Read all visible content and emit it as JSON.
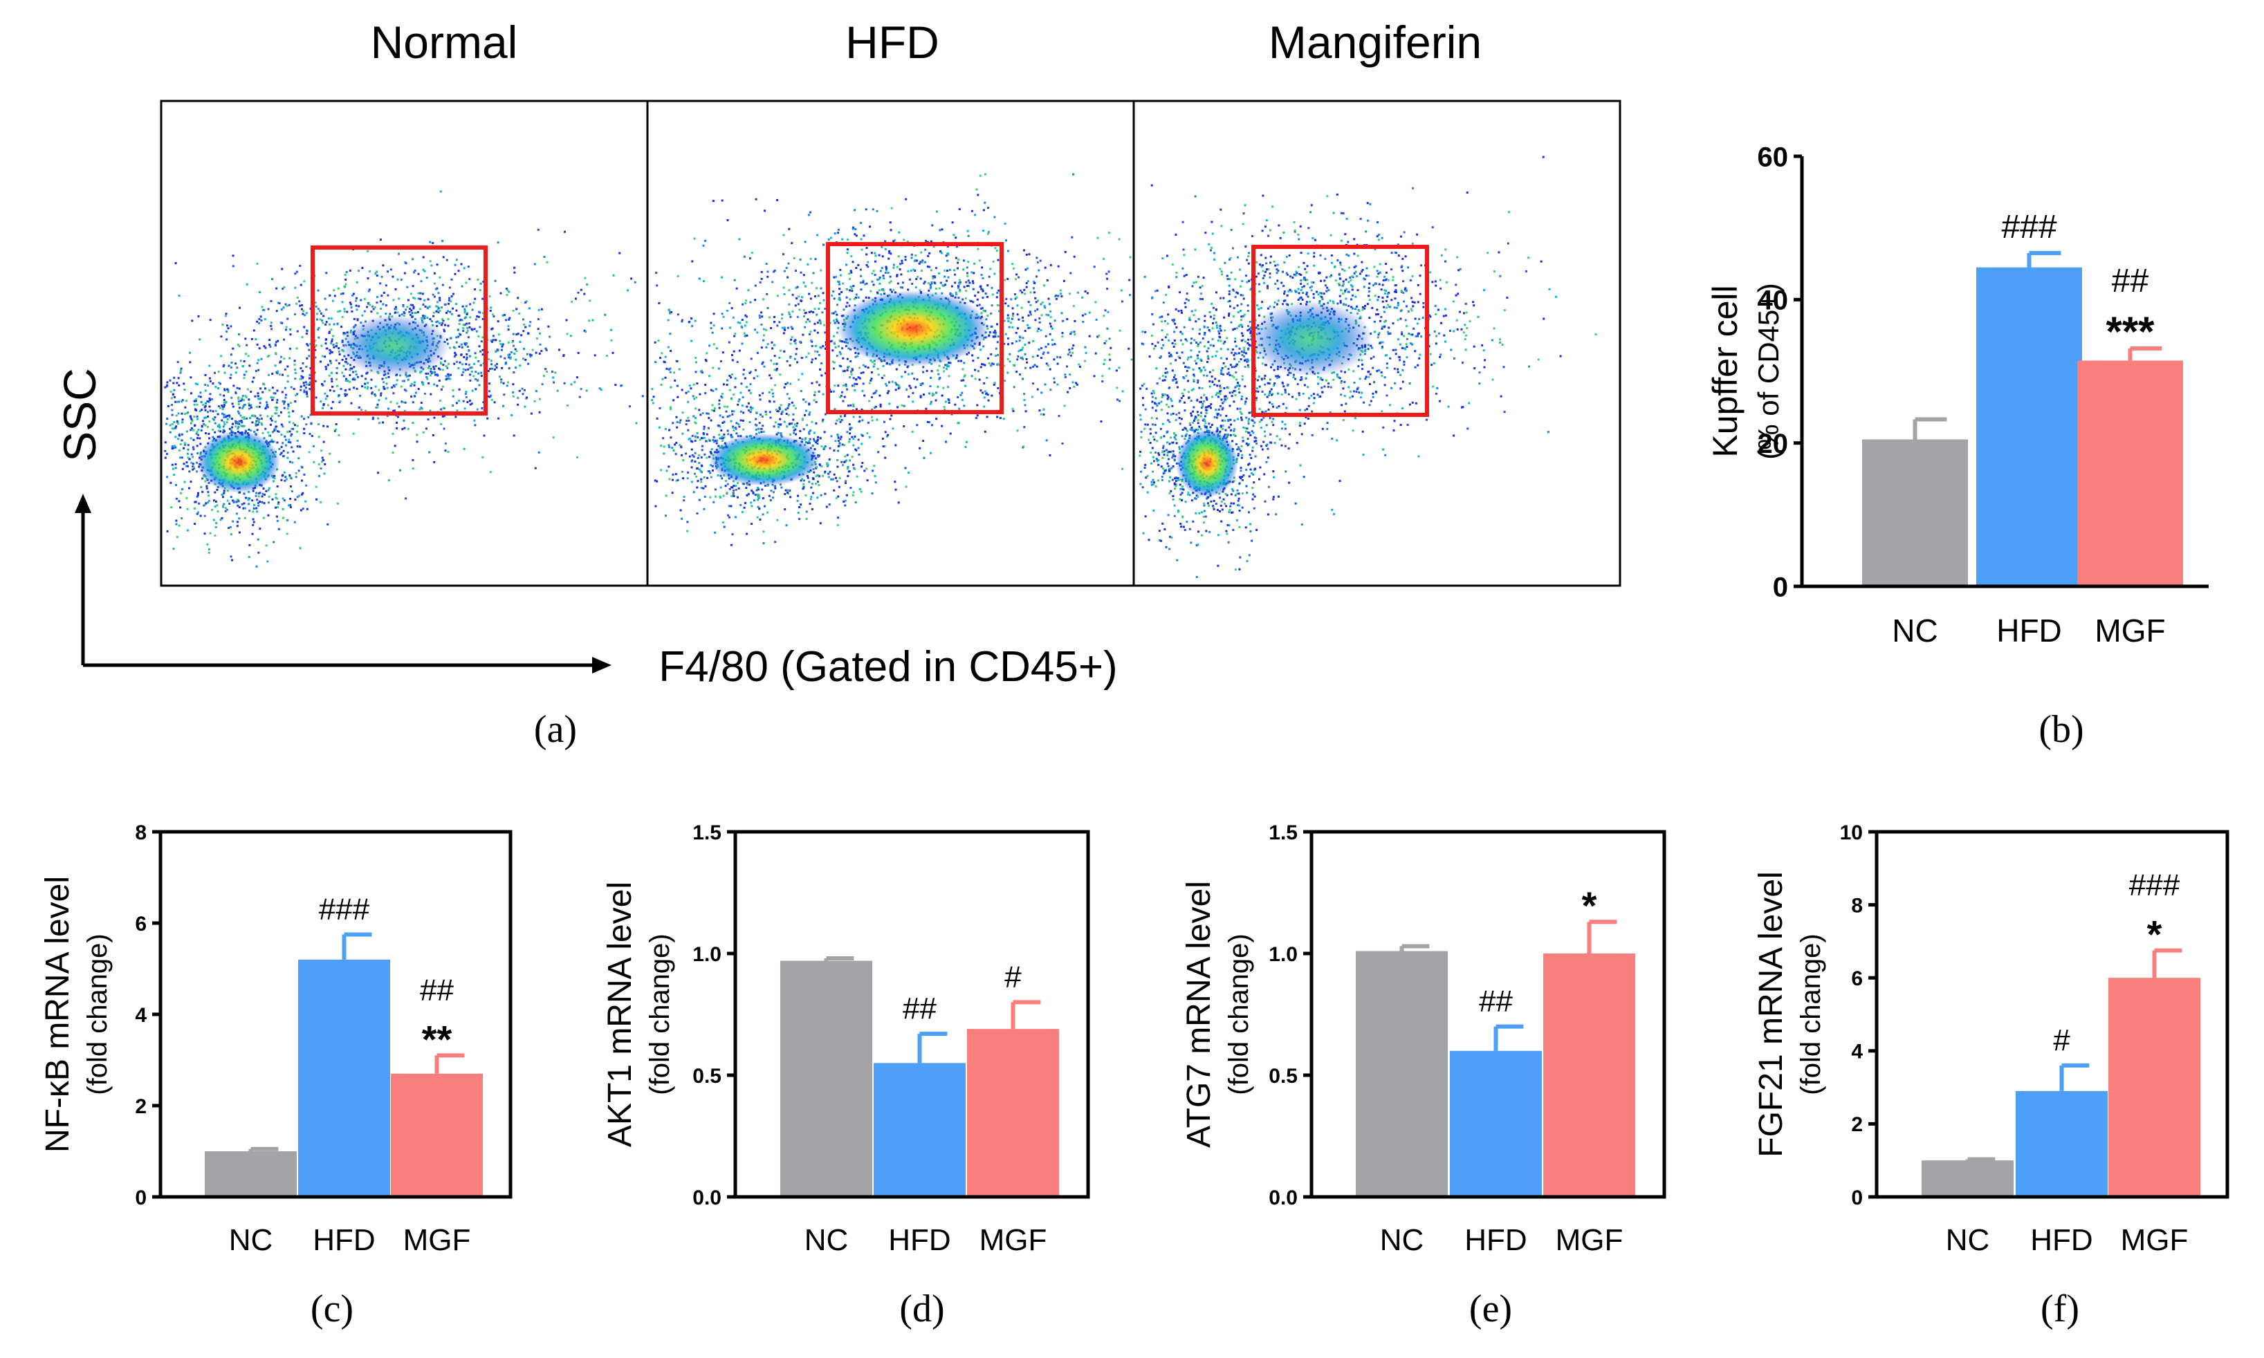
{
  "flow_panel": {
    "groups": [
      "Normal",
      "HFD",
      "Mangiferin"
    ],
    "y_label": "SSC",
    "x_label": "F4/80 (Gated in CD45+)",
    "caption": "(a)"
  },
  "colors": {
    "NC": "#a3a3a8",
    "HFD": "#4d9ff7",
    "MGF": "#f97f7e",
    "gate": "#ee1b1b",
    "axis": "#000000"
  },
  "chart_data": [
    {
      "id": "b",
      "type": "bar",
      "caption": "(b)",
      "ylabel_line1": "Kupffer cell",
      "ylabel_line2": "(% of CD45+)",
      "categories": [
        "NC",
        "HFD",
        "MGF"
      ],
      "values": [
        20.5,
        44.5,
        31.5
      ],
      "errors": [
        2.8,
        2.0,
        1.7
      ],
      "ylim": [
        0,
        60
      ],
      "yticks": [
        0,
        20,
        40,
        60
      ],
      "tick_labels": [
        "0",
        "20",
        "40",
        "60"
      ],
      "annotations": [
        [],
        [
          "###"
        ],
        [
          "##",
          "***"
        ]
      ]
    },
    {
      "id": "c",
      "type": "bar",
      "caption": "(c)",
      "ylabel_line1": "NF-κB mRNA level",
      "ylabel_line2": "(fold change)",
      "categories": [
        "NC",
        "HFD",
        "MGF"
      ],
      "values": [
        1.0,
        5.2,
        2.7
      ],
      "errors": [
        0.05,
        0.55,
        0.4
      ],
      "ylim": [
        0,
        8
      ],
      "yticks": [
        0,
        2,
        4,
        6,
        8
      ],
      "tick_labels": [
        "0",
        "2",
        "4",
        "6",
        "8"
      ],
      "annotations": [
        [],
        [
          "###"
        ],
        [
          "##",
          "**"
        ]
      ]
    },
    {
      "id": "d",
      "type": "bar",
      "caption": "(d)",
      "ylabel_line1": "AKT1 mRNA level",
      "ylabel_line2": "(fold change)",
      "categories": [
        "NC",
        "HFD",
        "MGF"
      ],
      "values": [
        0.97,
        0.55,
        0.69
      ],
      "errors": [
        0.01,
        0.12,
        0.11
      ],
      "ylim": [
        0,
        1.5
      ],
      "yticks": [
        0,
        0.5,
        1.0,
        1.5
      ],
      "tick_labels": [
        "0.0",
        "0.5",
        "1.0",
        "1.5"
      ],
      "annotations": [
        [],
        [
          "##"
        ],
        [
          "#"
        ]
      ]
    },
    {
      "id": "e",
      "type": "bar",
      "caption": "(e)",
      "ylabel_line1": "ATG7 mRNA level",
      "ylabel_line2": "(fold change)",
      "categories": [
        "NC",
        "HFD",
        "MGF"
      ],
      "values": [
        1.01,
        0.6,
        1.0
      ],
      "errors": [
        0.02,
        0.1,
        0.13
      ],
      "ylim": [
        0,
        1.5
      ],
      "yticks": [
        0,
        0.5,
        1.0,
        1.5
      ],
      "tick_labels": [
        "0.0",
        "0.5",
        "1.0",
        "1.5"
      ],
      "annotations": [
        [],
        [
          "##"
        ],
        [
          "*"
        ]
      ]
    },
    {
      "id": "f",
      "type": "bar",
      "caption": "(f)",
      "ylabel_line1": "FGF21 mRNA level",
      "ylabel_line2": "(fold change)",
      "categories": [
        "NC",
        "HFD",
        "MGF"
      ],
      "values": [
        1.0,
        2.9,
        6.0
      ],
      "errors": [
        0.03,
        0.7,
        0.75
      ],
      "ylim": [
        0,
        10
      ],
      "yticks": [
        0,
        2,
        4,
        6,
        8,
        10
      ],
      "tick_labels": [
        "0",
        "2",
        "4",
        "6",
        "8",
        "10"
      ],
      "annotations": [
        [],
        [
          "#"
        ],
        [
          "###",
          "*"
        ]
      ]
    }
  ]
}
